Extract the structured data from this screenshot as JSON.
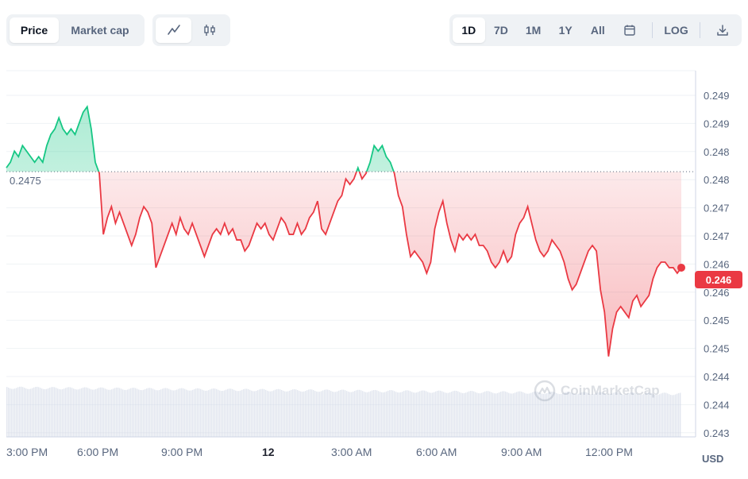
{
  "toolbar": {
    "metric_tabs": [
      {
        "label": "Price",
        "active": true
      },
      {
        "label": "Market cap",
        "active": false
      }
    ],
    "chart_types": [
      {
        "icon": "line-chart-icon",
        "active": true
      },
      {
        "icon": "candlestick-icon",
        "active": false
      }
    ],
    "ranges": [
      {
        "label": "1D",
        "active": true
      },
      {
        "label": "7D",
        "active": false
      },
      {
        "label": "1M",
        "active": false
      },
      {
        "label": "1Y",
        "active": false
      },
      {
        "label": "All",
        "active": false
      }
    ],
    "calendar_icon": "calendar-icon",
    "log_label": "LOG",
    "download_icon": "download-icon"
  },
  "watermark": "CoinMarketCap",
  "colors": {
    "up": "#16c784",
    "down": "#ea3943",
    "grid": "#eff2f5",
    "volume": "#cfd6e4"
  },
  "chart_data": {
    "type": "area",
    "reference_value": "0.2475",
    "current_price": "0.246",
    "currency": "USD",
    "y_ticks": [
      "0.249",
      "0.249",
      "0.248",
      "0.248",
      "0.247",
      "0.247",
      "0.246",
      "0.246",
      "0.245",
      "0.245",
      "0.244",
      "0.244",
      "0.243"
    ],
    "ylim": [
      0.243,
      0.2496
    ],
    "reference_numeric": 0.24778,
    "x_ticks": [
      {
        "label": "3:00 PM",
        "bold": false
      },
      {
        "label": "6:00 PM",
        "bold": false
      },
      {
        "label": "9:00 PM",
        "bold": false
      },
      {
        "label": "12",
        "bold": true
      },
      {
        "label": "3:00 AM",
        "bold": false
      },
      {
        "label": "6:00 AM",
        "bold": false
      },
      {
        "label": "9:00 AM",
        "bold": false
      },
      {
        "label": "12:00 PM",
        "bold": false
      }
    ],
    "series": [
      {
        "values": [
          0.24785,
          0.24795,
          0.24815,
          0.24805,
          0.24825,
          0.24815,
          0.24805,
          0.24795,
          0.24805,
          0.24795,
          0.24825,
          0.24845,
          0.24855,
          0.24875,
          0.24855,
          0.24845,
          0.24855,
          0.24845,
          0.24865,
          0.24885,
          0.24895,
          0.24855,
          0.24795,
          0.24775,
          0.24665,
          0.24695,
          0.24715,
          0.24685,
          0.24705,
          0.24685,
          0.24665,
          0.24645,
          0.24665,
          0.24695,
          0.24715,
          0.24705,
          0.24685,
          0.24605,
          0.24625,
          0.24645,
          0.24665,
          0.24685,
          0.24665,
          0.24695,
          0.24675,
          0.24665,
          0.24685,
          0.24665,
          0.24645,
          0.24625,
          0.24645,
          0.24665,
          0.24675,
          0.24665,
          0.24685,
          0.24665,
          0.24675,
          0.24655,
          0.24655,
          0.24635,
          0.24645,
          0.24665,
          0.24685,
          0.24675,
          0.24685,
          0.24665,
          0.24655,
          0.24675,
          0.24695,
          0.24685,
          0.24665,
          0.24665,
          0.24685,
          0.24665,
          0.24675,
          0.24695,
          0.24705,
          0.24725,
          0.24675,
          0.24665,
          0.24685,
          0.24705,
          0.24725,
          0.24735,
          0.24765,
          0.24755,
          0.24765,
          0.24785,
          0.24765,
          0.24775,
          0.24795,
          0.24825,
          0.24815,
          0.24825,
          0.24805,
          0.24795,
          0.24775,
          0.24735,
          0.24715,
          0.24665,
          0.24625,
          0.24635,
          0.24625,
          0.24615,
          0.24595,
          0.24615,
          0.24675,
          0.24705,
          0.24725,
          0.24685,
          0.24655,
          0.24635,
          0.24665,
          0.24655,
          0.24665,
          0.24655,
          0.24665,
          0.24645,
          0.24645,
          0.24635,
          0.24615,
          0.24605,
          0.24615,
          0.24635,
          0.24615,
          0.24625,
          0.24665,
          0.24685,
          0.24695,
          0.24715,
          0.24685,
          0.24655,
          0.24635,
          0.24625,
          0.24635,
          0.24655,
          0.24645,
          0.24635,
          0.24615,
          0.24585,
          0.24565,
          0.24575,
          0.24595,
          0.24615,
          0.24635,
          0.24645,
          0.24635,
          0.24565,
          0.24525,
          0.24445,
          0.24495,
          0.24525,
          0.24535,
          0.24525,
          0.24515,
          0.24545,
          0.24555,
          0.24535,
          0.24545,
          0.24555,
          0.24585,
          0.24605,
          0.24615,
          0.24615,
          0.24605,
          0.24605,
          0.24595,
          0.24605
        ]
      }
    ]
  }
}
